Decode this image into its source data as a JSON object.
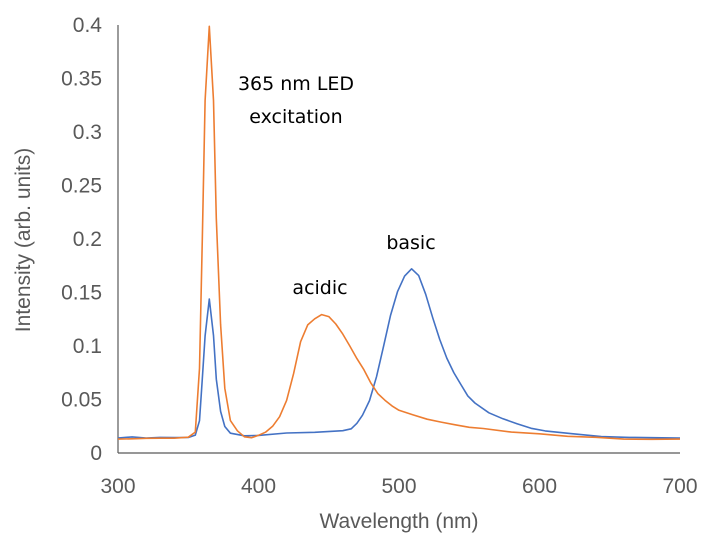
{
  "chart_data": {
    "type": "line",
    "title": "",
    "xlabel": "Wavelength (nm)",
    "ylabel": "Intensity (arb. units)",
    "xlim": [
      300,
      700
    ],
    "ylim": [
      0,
      0.4
    ],
    "xticks": [
      "300",
      "400",
      "500",
      "600",
      "700"
    ],
    "yticks": [
      "0",
      "0.05",
      "0.1",
      "0.15",
      "0.2",
      "0.25",
      "0.3",
      "0.35",
      "0.4"
    ],
    "grid": false,
    "legend": "none",
    "annotations": [
      "365 nm LED",
      "excitation",
      "acidic",
      "basic"
    ],
    "series": [
      {
        "name": "basic",
        "color": "#4472C4",
        "x": [
          300,
          310,
          320,
          330,
          340,
          350,
          355,
          358,
          360,
          362,
          365,
          368,
          370,
          373,
          376,
          380,
          390,
          400,
          420,
          440,
          460,
          466,
          470,
          474,
          479,
          484,
          489,
          494,
          499,
          504,
          509,
          514,
          519,
          524,
          529,
          534,
          539,
          544,
          549,
          554,
          564,
          574,
          584,
          594,
          604,
          624,
          644,
          664,
          700
        ],
        "y": [
          0.014,
          0.014,
          0.014,
          0.014,
          0.014,
          0.014,
          0.016,
          0.03,
          0.07,
          0.11,
          0.145,
          0.11,
          0.07,
          0.04,
          0.025,
          0.018,
          0.015,
          0.016,
          0.018,
          0.019,
          0.02,
          0.022,
          0.027,
          0.036,
          0.05,
          0.072,
          0.1,
          0.13,
          0.152,
          0.166,
          0.171,
          0.165,
          0.148,
          0.126,
          0.106,
          0.088,
          0.074,
          0.063,
          0.054,
          0.047,
          0.038,
          0.032,
          0.028,
          0.024,
          0.021,
          0.017,
          0.015,
          0.014,
          0.014
        ]
      },
      {
        "name": "acidic",
        "color": "#ED7D31",
        "x": [
          300,
          310,
          320,
          330,
          340,
          350,
          355,
          358,
          360,
          362,
          365,
          368,
          370,
          373,
          376,
          380,
          385,
          390,
          395,
          400,
          405,
          410,
          415,
          420,
          425,
          430,
          435,
          440,
          445,
          450,
          455,
          460,
          465,
          470,
          475,
          480,
          485,
          490,
          495,
          500,
          510,
          520,
          530,
          540,
          550,
          560,
          580,
          600,
          620,
          640,
          660,
          680,
          700
        ],
        "y": [
          0.013,
          0.013,
          0.013,
          0.013,
          0.013,
          0.014,
          0.02,
          0.08,
          0.2,
          0.33,
          0.4,
          0.33,
          0.22,
          0.12,
          0.06,
          0.03,
          0.02,
          0.015,
          0.014,
          0.016,
          0.02,
          0.026,
          0.035,
          0.05,
          0.075,
          0.105,
          0.12,
          0.126,
          0.129,
          0.127,
          0.12,
          0.11,
          0.099,
          0.088,
          0.077,
          0.066,
          0.056,
          0.05,
          0.045,
          0.041,
          0.036,
          0.032,
          0.029,
          0.026,
          0.024,
          0.022,
          0.019,
          0.017,
          0.015,
          0.014,
          0.014,
          0.013,
          0.013
        ]
      }
    ]
  }
}
